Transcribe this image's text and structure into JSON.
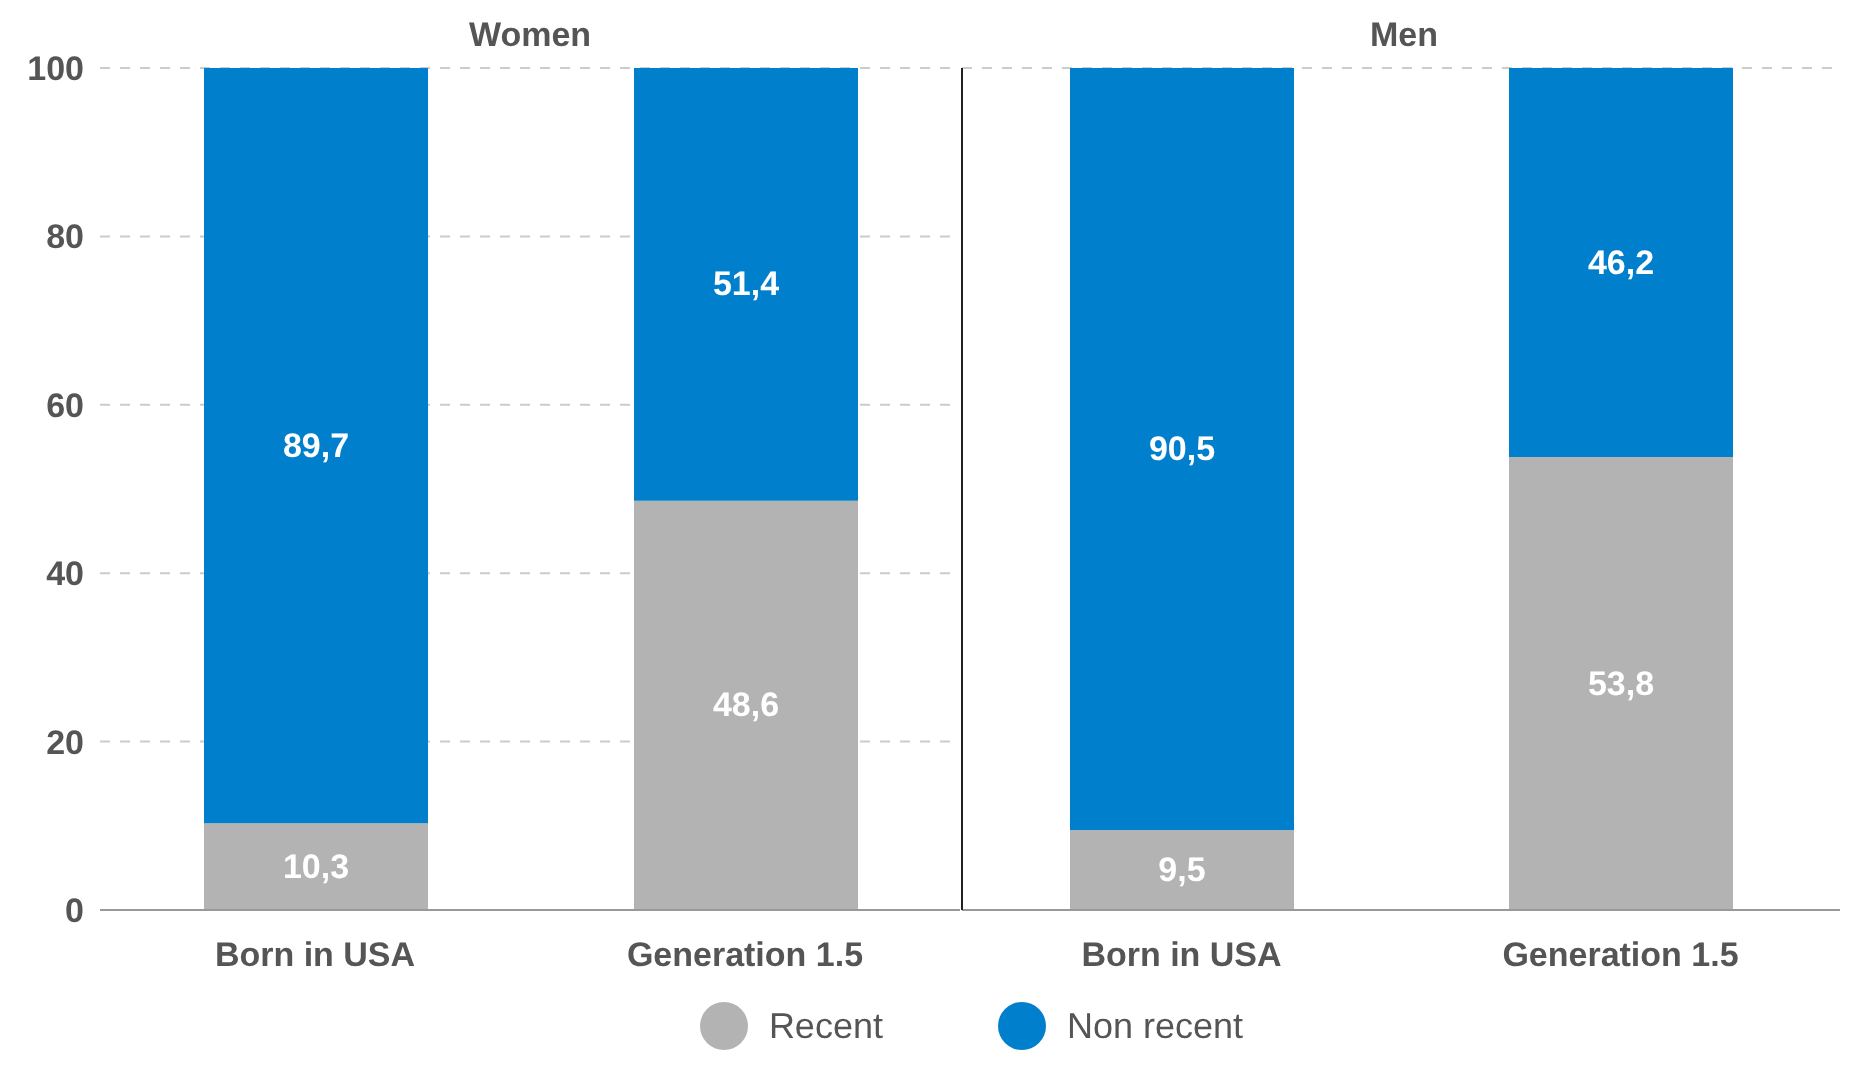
{
  "chart_data": [
    {
      "type": "bar",
      "title": "Women",
      "categories": [
        "Born in USA",
        "Generation 1.5"
      ],
      "stacked": true,
      "ylim": [
        0,
        100
      ],
      "yticks": [
        0,
        20,
        40,
        60,
        80,
        100
      ],
      "grid": "y",
      "legend": "bottom",
      "series": [
        {
          "name": "Recent",
          "color": "#b3b3b3",
          "values": [
            10.3,
            48.6
          ],
          "value_labels": [
            "10,3",
            "48,6"
          ]
        },
        {
          "name": "Non recent",
          "color": "#0080cc",
          "values": [
            89.7,
            51.4
          ],
          "value_labels": [
            "89,7",
            "51,4"
          ]
        }
      ]
    },
    {
      "type": "bar",
      "title": "Men",
      "categories": [
        "Born in USA",
        "Generation 1.5"
      ],
      "stacked": true,
      "ylim": [
        0,
        100
      ],
      "yticks": [
        0,
        20,
        40,
        60,
        80,
        100
      ],
      "grid": "y",
      "tick_labels": "x",
      "series": [
        {
          "color": "#b3b3b3",
          "values": [
            9.5,
            53.8
          ],
          "value_labels": [
            "9,5",
            "53,8"
          ]
        },
        {
          "color": "#0080cc",
          "values": [
            90.5,
            46.2
          ],
          "value_labels": [
            "90,5",
            "46,2"
          ]
        }
      ]
    }
  ]
}
